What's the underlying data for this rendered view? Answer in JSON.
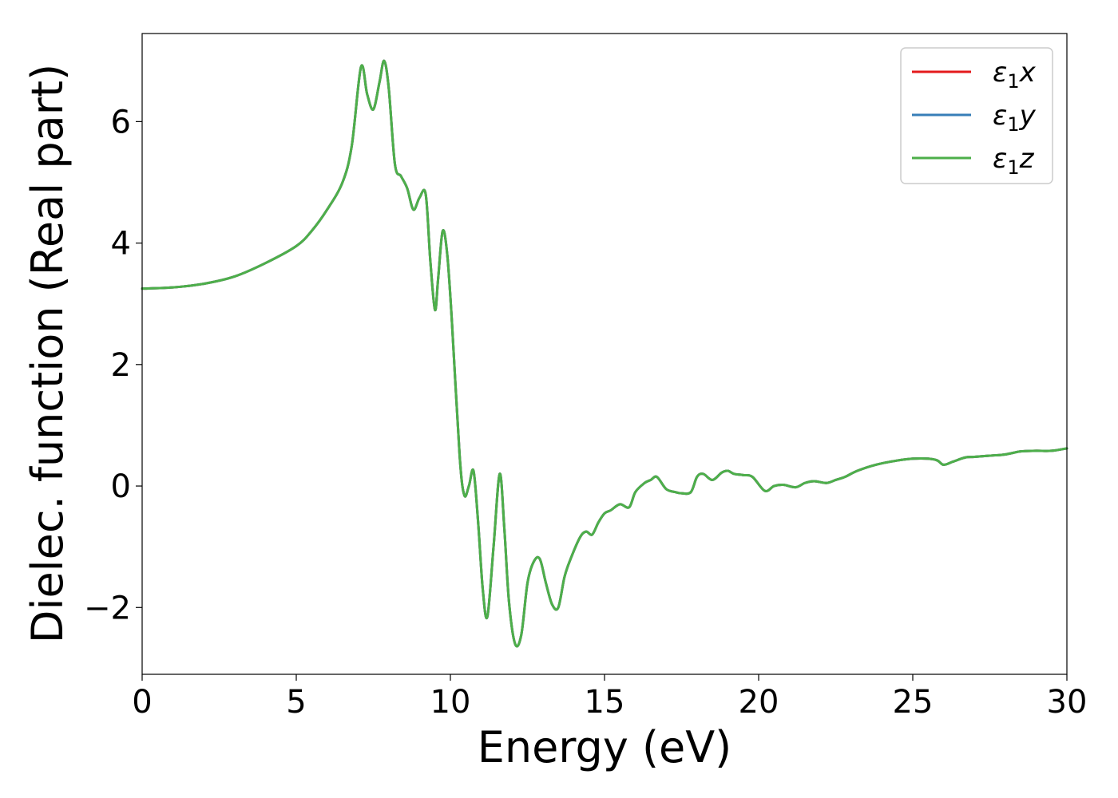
{
  "chart_data": {
    "type": "line",
    "title": "",
    "xlabel": "Energy (eV)",
    "ylabel": "Dielec. function (Real part)",
    "xlim": [
      0,
      30
    ],
    "ylim": [
      -3.1,
      7.45
    ],
    "xticks": [
      0,
      5,
      10,
      15,
      20,
      25,
      30
    ],
    "xtick_labels": [
      "0",
      "5",
      "10",
      "15",
      "20",
      "25",
      "30"
    ],
    "yticks": [
      -2,
      0,
      2,
      4,
      6
    ],
    "ytick_labels": [
      "−2",
      "0",
      "2",
      "4",
      "6"
    ],
    "grid": false,
    "legend_position": "top-right",
    "x": [
      0,
      1,
      2,
      3,
      4,
      5,
      5.5,
      6,
      6.5,
      6.8,
      7.1,
      7.3,
      7.5,
      7.7,
      7.85,
      8.0,
      8.2,
      8.4,
      8.6,
      8.8,
      9.0,
      9.2,
      9.35,
      9.5,
      9.6,
      9.75,
      9.9,
      10.05,
      10.3,
      10.45,
      10.6,
      10.75,
      10.9,
      11.05,
      11.2,
      11.4,
      11.6,
      11.75,
      11.9,
      12.1,
      12.3,
      12.5,
      12.7,
      12.9,
      13.1,
      13.3,
      13.5,
      13.7,
      13.9,
      14.2,
      14.4,
      14.6,
      14.8,
      15.0,
      15.2,
      15.5,
      15.8,
      16.0,
      16.3,
      16.5,
      16.7,
      17.0,
      17.3,
      17.5,
      17.8,
      18.0,
      18.2,
      18.5,
      18.8,
      19.0,
      19.2,
      19.5,
      19.8,
      20.2,
      20.5,
      20.8,
      21.2,
      21.5,
      21.8,
      22.2,
      22.5,
      22.8,
      23.2,
      23.8,
      24.5,
      25.0,
      25.5,
      25.8,
      26.0,
      26.3,
      26.7,
      27.0,
      27.5,
      28.0,
      28.5,
      29.0,
      29.5,
      30.0
    ],
    "series": [
      {
        "name": "ε₁x",
        "color": "#e41a1c",
        "values": [
          3.25,
          3.27,
          3.33,
          3.45,
          3.67,
          3.95,
          4.2,
          4.55,
          5.0,
          5.6,
          6.9,
          6.45,
          6.2,
          6.65,
          7.0,
          6.55,
          5.3,
          5.1,
          4.9,
          4.55,
          4.75,
          4.8,
          3.7,
          2.9,
          3.4,
          4.2,
          3.8,
          2.7,
          0.5,
          -0.15,
          0.0,
          0.25,
          -0.6,
          -1.7,
          -2.15,
          -1.0,
          0.2,
          -0.7,
          -1.9,
          -2.6,
          -2.45,
          -1.6,
          -1.25,
          -1.2,
          -1.6,
          -1.95,
          -2.0,
          -1.5,
          -1.2,
          -0.85,
          -0.75,
          -0.8,
          -0.6,
          -0.45,
          -0.4,
          -0.3,
          -0.35,
          -0.1,
          0.05,
          0.1,
          0.15,
          -0.05,
          -0.1,
          -0.12,
          -0.1,
          0.15,
          0.2,
          0.1,
          0.22,
          0.25,
          0.2,
          0.18,
          0.15,
          -0.08,
          0.0,
          0.02,
          -0.02,
          0.05,
          0.08,
          0.05,
          0.1,
          0.15,
          0.25,
          0.35,
          0.42,
          0.45,
          0.45,
          0.42,
          0.35,
          0.4,
          0.47,
          0.48,
          0.5,
          0.52,
          0.57,
          0.58,
          0.58,
          0.62
        ]
      },
      {
        "name": "ε₁y",
        "color": "#377eb8",
        "values": [
          3.25,
          3.27,
          3.33,
          3.45,
          3.67,
          3.95,
          4.2,
          4.55,
          5.0,
          5.6,
          6.9,
          6.45,
          6.2,
          6.65,
          7.0,
          6.55,
          5.3,
          5.1,
          4.9,
          4.55,
          4.75,
          4.8,
          3.7,
          2.9,
          3.4,
          4.2,
          3.8,
          2.7,
          0.5,
          -0.15,
          0.0,
          0.25,
          -0.6,
          -1.7,
          -2.15,
          -1.0,
          0.2,
          -0.7,
          -1.9,
          -2.6,
          -2.45,
          -1.6,
          -1.25,
          -1.2,
          -1.6,
          -1.95,
          -2.0,
          -1.5,
          -1.2,
          -0.85,
          -0.75,
          -0.8,
          -0.6,
          -0.45,
          -0.4,
          -0.3,
          -0.35,
          -0.1,
          0.05,
          0.1,
          0.15,
          -0.05,
          -0.1,
          -0.12,
          -0.1,
          0.15,
          0.2,
          0.1,
          0.22,
          0.25,
          0.2,
          0.18,
          0.15,
          -0.08,
          0.0,
          0.02,
          -0.02,
          0.05,
          0.08,
          0.05,
          0.1,
          0.15,
          0.25,
          0.35,
          0.42,
          0.45,
          0.45,
          0.42,
          0.35,
          0.4,
          0.47,
          0.48,
          0.5,
          0.52,
          0.57,
          0.58,
          0.58,
          0.62
        ]
      },
      {
        "name": "ε₁z",
        "color": "#4daf4a",
        "values": [
          3.25,
          3.27,
          3.33,
          3.45,
          3.67,
          3.95,
          4.2,
          4.55,
          5.0,
          5.6,
          6.9,
          6.45,
          6.2,
          6.65,
          7.0,
          6.55,
          5.3,
          5.1,
          4.9,
          4.55,
          4.75,
          4.8,
          3.7,
          2.9,
          3.4,
          4.2,
          3.8,
          2.7,
          0.5,
          -0.15,
          0.0,
          0.25,
          -0.6,
          -1.7,
          -2.15,
          -1.0,
          0.2,
          -0.7,
          -1.9,
          -2.6,
          -2.45,
          -1.6,
          -1.25,
          -1.2,
          -1.6,
          -1.95,
          -2.0,
          -1.5,
          -1.2,
          -0.85,
          -0.75,
          -0.8,
          -0.6,
          -0.45,
          -0.4,
          -0.3,
          -0.35,
          -0.1,
          0.05,
          0.1,
          0.15,
          -0.05,
          -0.1,
          -0.12,
          -0.1,
          0.15,
          0.2,
          0.1,
          0.22,
          0.25,
          0.2,
          0.18,
          0.15,
          -0.08,
          0.0,
          0.02,
          -0.02,
          0.05,
          0.08,
          0.05,
          0.1,
          0.15,
          0.25,
          0.35,
          0.42,
          0.45,
          0.45,
          0.42,
          0.35,
          0.4,
          0.47,
          0.48,
          0.5,
          0.52,
          0.57,
          0.58,
          0.58,
          0.62
        ]
      }
    ],
    "legend": [
      {
        "symbol": "ε",
        "sub": "1",
        "axis": "x"
      },
      {
        "symbol": "ε",
        "sub": "1",
        "axis": "y"
      },
      {
        "symbol": "ε",
        "sub": "1",
        "axis": "z"
      }
    ]
  }
}
